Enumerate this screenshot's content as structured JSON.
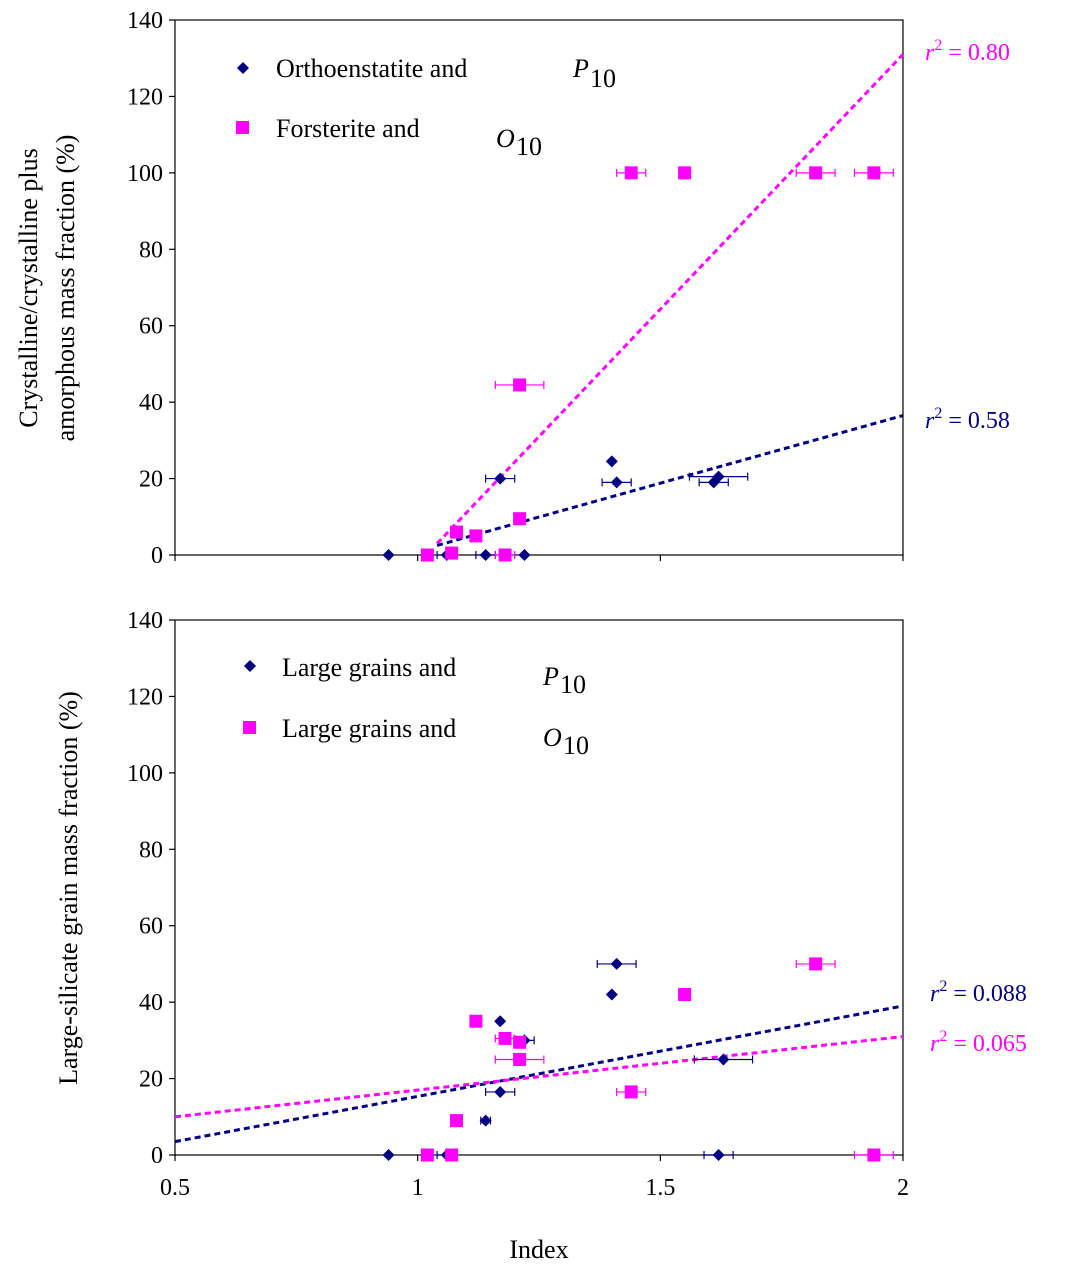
{
  "chart_data": [
    {
      "type": "scatter",
      "title": "",
      "xlabel": "",
      "ylabel_line1": "Crystalline/crystalline plus",
      "ylabel_line2": "amorphous mass fraction (%)",
      "xlim": [
        0.5,
        2
      ],
      "ylim": [
        0,
        140
      ],
      "x_tick_labels": [],
      "y_ticks": [
        "0",
        "20",
        "40",
        "60",
        "80",
        "100",
        "120",
        "140"
      ],
      "legend_placement": "top-left",
      "series": [
        {
          "name": "Orthoenstatite and",
          "name_sub": "P10",
          "name_sub_main": "P",
          "name_sub_index": "10",
          "marker": "diamond",
          "color": "#000080",
          "points": [
            {
              "x": 0.94,
              "y": 0,
              "xerr": 0
            },
            {
              "x": 1.06,
              "y": 0,
              "xerr": 0.02
            },
            {
              "x": 1.14,
              "y": 0,
              "xerr": 0.02
            },
            {
              "x": 1.22,
              "y": 0,
              "xerr": 0
            },
            {
              "x": 1.17,
              "y": 20,
              "xerr": 0.03
            },
            {
              "x": 1.4,
              "y": 24.5,
              "xerr": 0
            },
            {
              "x": 1.41,
              "y": 19,
              "xerr": 0.03
            },
            {
              "x": 1.62,
              "y": 20.5,
              "xerr": 0.06
            },
            {
              "x": 1.61,
              "y": 19,
              "xerr": 0.03
            }
          ],
          "trendline": {
            "x": [
              1.04,
              2.0
            ],
            "y": [
              2.5,
              36.5
            ],
            "r2_label": "r",
            "r2_sup": "2",
            "r2_value": " = 0.58"
          }
        },
        {
          "name": "Forsterite and",
          "name_sub": "O10",
          "name_sub_main": "O",
          "name_sub_index": "10",
          "marker": "square",
          "color": "#ff00ff",
          "points": [
            {
              "x": 1.02,
              "y": 0,
              "xerr": 0
            },
            {
              "x": 1.07,
              "y": 0.5,
              "xerr": 0
            },
            {
              "x": 1.08,
              "y": 6,
              "xerr": 0
            },
            {
              "x": 1.12,
              "y": 5,
              "xerr": 0
            },
            {
              "x": 1.18,
              "y": 0,
              "xerr": 0.02
            },
            {
              "x": 1.21,
              "y": 9.5,
              "xerr": 0
            },
            {
              "x": 1.21,
              "y": 44.5,
              "xerr": 0.05
            },
            {
              "x": 1.44,
              "y": 100,
              "xerr": 0.03
            },
            {
              "x": 1.55,
              "y": 100,
              "xerr": 0.01
            },
            {
              "x": 1.82,
              "y": 100,
              "xerr": 0.04
            },
            {
              "x": 1.94,
              "y": 100,
              "xerr": 0.04
            }
          ],
          "trendline": {
            "x": [
              1.04,
              2.0
            ],
            "y": [
              3,
              131
            ],
            "r2_label": "r",
            "r2_sup": "2",
            "r2_value": " = 0.80"
          }
        }
      ]
    },
    {
      "type": "scatter",
      "title": "",
      "xlabel": "Index",
      "ylabel": "Large-silicate grain mass fraction (%)",
      "xlim": [
        0.5,
        2
      ],
      "ylim": [
        0,
        140
      ],
      "x_tick_labels": [
        "0.5",
        "1",
        "1.5",
        "2"
      ],
      "y_ticks": [
        "0",
        "20",
        "40",
        "60",
        "80",
        "100",
        "120",
        "140"
      ],
      "legend_placement": "top-left",
      "series": [
        {
          "name": "Large grains and",
          "name_sub": "P10",
          "name_sub_main": "P",
          "name_sub_index": "10",
          "marker": "diamond",
          "color": "#000080",
          "points": [
            {
              "x": 0.94,
              "y": 0,
              "xerr": 0
            },
            {
              "x": 1.06,
              "y": 0,
              "xerr": 0.02
            },
            {
              "x": 1.62,
              "y": 0,
              "xerr": 0.03
            },
            {
              "x": 1.14,
              "y": 9,
              "xerr": 0.01
            },
            {
              "x": 1.17,
              "y": 16.5,
              "xerr": 0.03
            },
            {
              "x": 1.17,
              "y": 35,
              "xerr": 0
            },
            {
              "x": 1.22,
              "y": 30,
              "xerr": 0.02
            },
            {
              "x": 1.4,
              "y": 42,
              "xerr": 0
            },
            {
              "x": 1.41,
              "y": 50,
              "xerr": 0.04
            },
            {
              "x": 1.63,
              "y": 25,
              "xerr": 0.06
            }
          ],
          "trendline": {
            "x": [
              0.5,
              2.0
            ],
            "y": [
              3.5,
              39
            ],
            "r2_label": "r",
            "r2_sup": "2",
            "r2_value": " = 0.088"
          }
        },
        {
          "name": "Large grains and",
          "name_sub": "O10",
          "name_sub_main": "O",
          "name_sub_index": "10",
          "marker": "square",
          "color": "#ff00ff",
          "points": [
            {
              "x": 1.02,
              "y": 0,
              "xerr": 0
            },
            {
              "x": 1.07,
              "y": 0,
              "xerr": 0
            },
            {
              "x": 1.94,
              "y": 0,
              "xerr": 0.04
            },
            {
              "x": 1.08,
              "y": 9,
              "xerr": 0
            },
            {
              "x": 1.12,
              "y": 35,
              "xerr": 0
            },
            {
              "x": 1.18,
              "y": 30.5,
              "xerr": 0.02
            },
            {
              "x": 1.21,
              "y": 29.5,
              "xerr": 0.01
            },
            {
              "x": 1.21,
              "y": 25,
              "xerr": 0.05
            },
            {
              "x": 1.44,
              "y": 16.5,
              "xerr": 0.03
            },
            {
              "x": 1.55,
              "y": 42,
              "xerr": 0.01
            },
            {
              "x": 1.82,
              "y": 50,
              "xerr": 0.04
            }
          ],
          "trendline": {
            "x": [
              0.5,
              2.0
            ],
            "y": [
              10,
              31
            ],
            "r2_label": "r",
            "r2_sup": "2",
            "r2_value": " = 0.065"
          }
        }
      ]
    }
  ]
}
